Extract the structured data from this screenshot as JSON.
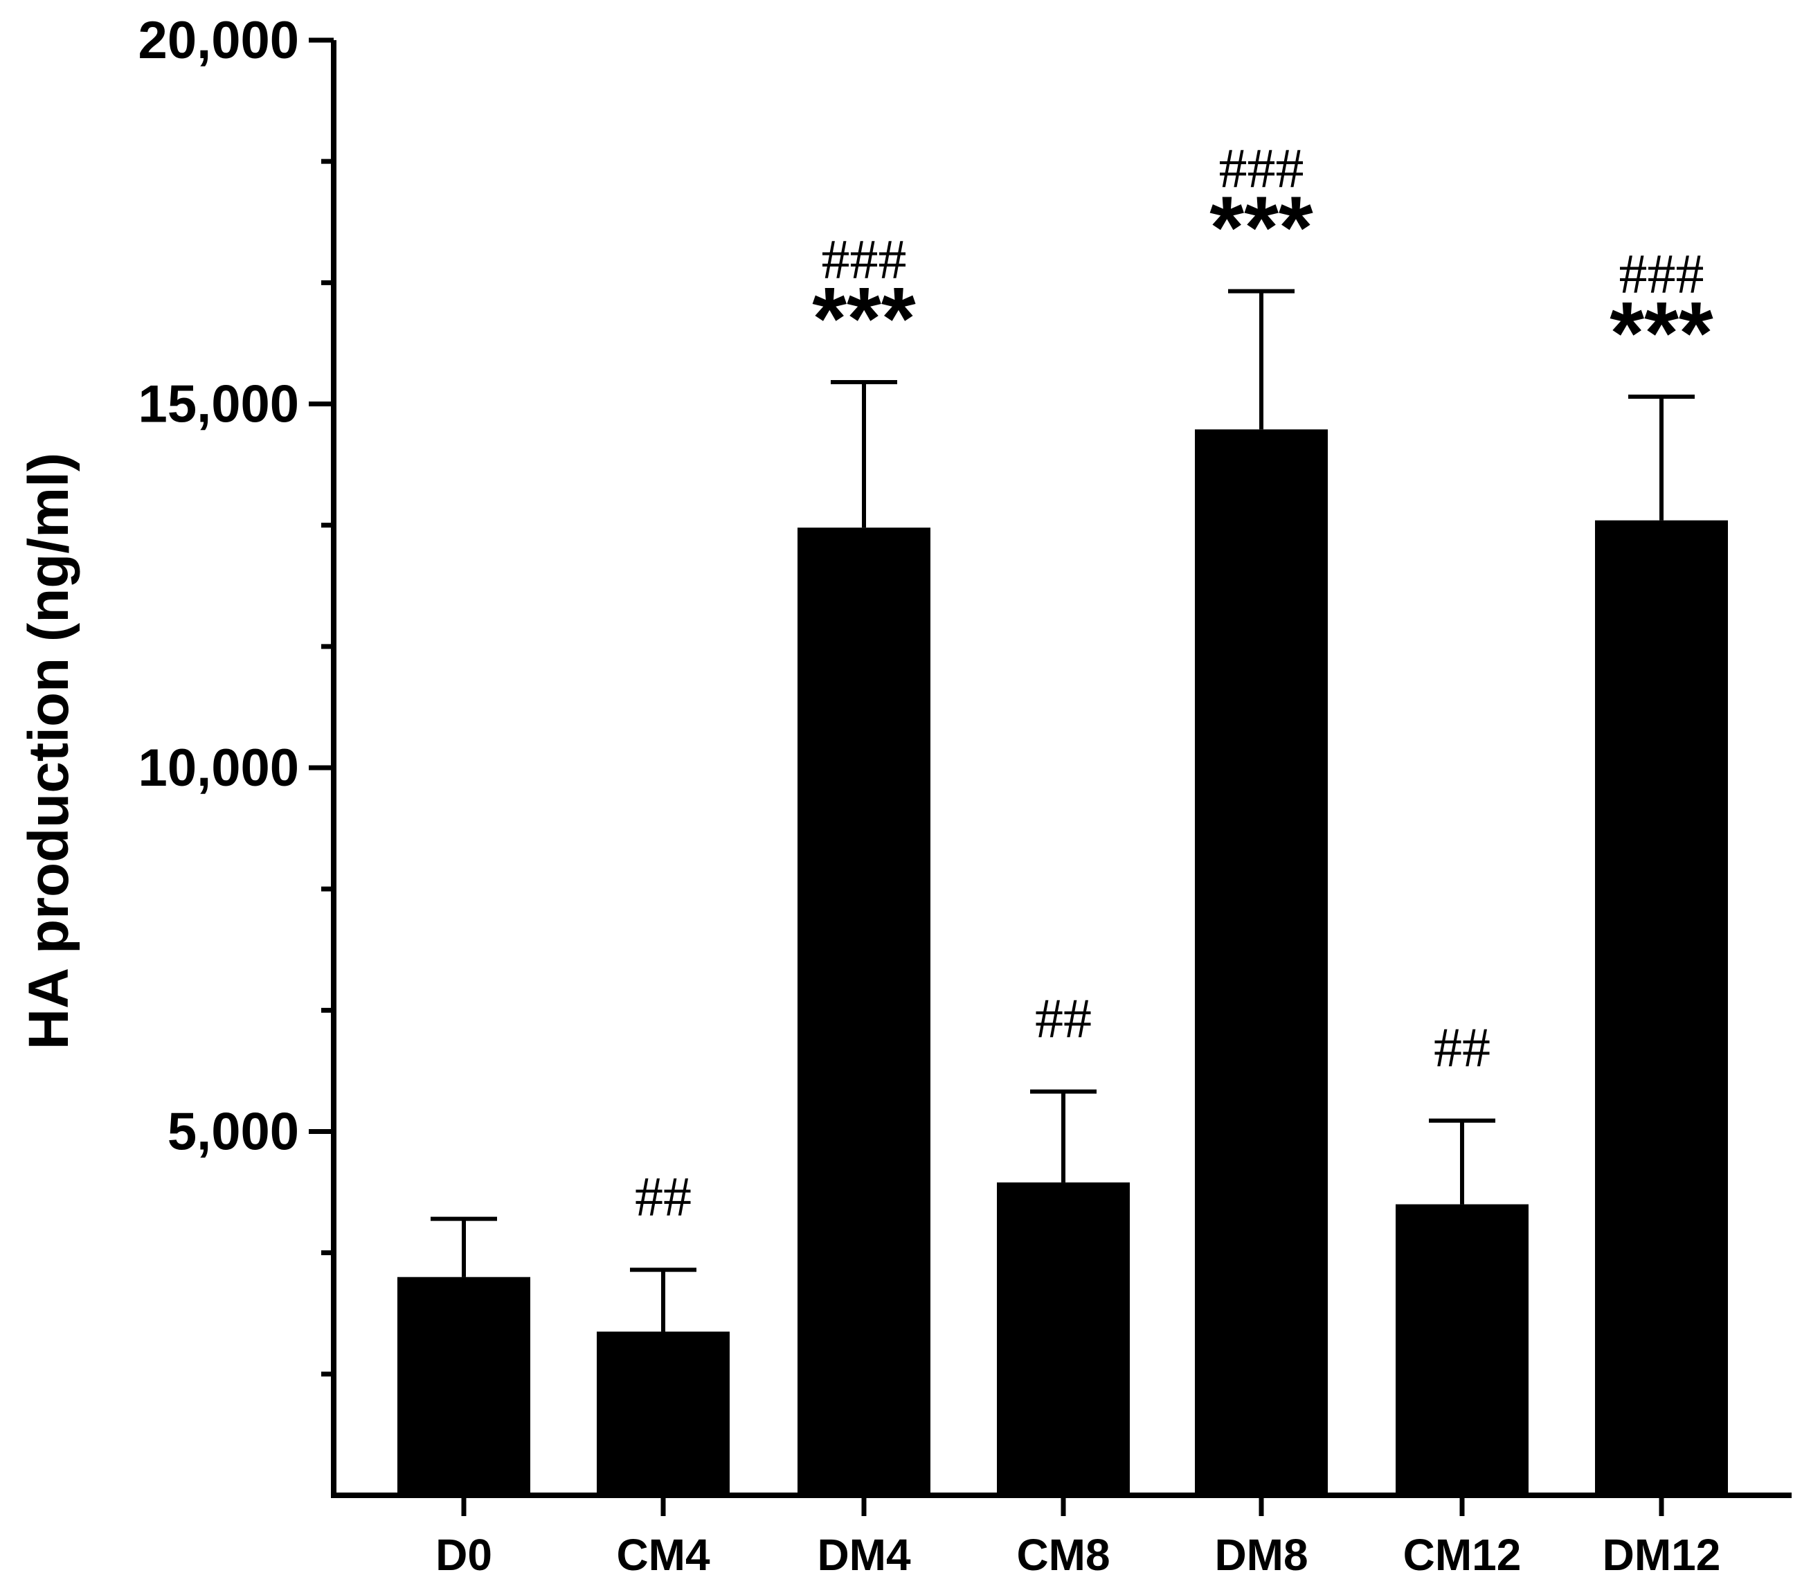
{
  "chart_data": {
    "type": "bar",
    "title": "",
    "xlabel": "",
    "ylabel": "HA production (ng/ml)",
    "ylim": [
      0,
      20000
    ],
    "yticks": [
      5000,
      10000,
      15000,
      20000
    ],
    "ytick_labels": [
      "5,000",
      "10,000",
      "15,000",
      "20,000"
    ],
    "minor_ytick_step": 1666.67,
    "grid": false,
    "legend": "none",
    "bar_color": "#000000",
    "categories": [
      "D0",
      "CM4",
      "DM4",
      "CM8",
      "DM8",
      "CM12",
      "DM12"
    ],
    "values": [
      3000,
      2250,
      13300,
      4300,
      14650,
      4000,
      13400
    ],
    "error_upper": [
      3800,
      3100,
      15300,
      5550,
      16550,
      5150,
      15100
    ],
    "annotations": [
      {
        "category": "D0",
        "hash": "",
        "stars": ""
      },
      {
        "category": "CM4",
        "hash": "##",
        "stars": ""
      },
      {
        "category": "DM4",
        "hash": "###",
        "stars": "***"
      },
      {
        "category": "CM8",
        "hash": "##",
        "stars": ""
      },
      {
        "category": "DM8",
        "hash": "###",
        "stars": "***"
      },
      {
        "category": "CM12",
        "hash": "##",
        "stars": ""
      },
      {
        "category": "DM12",
        "hash": "###",
        "stars": "***"
      }
    ]
  }
}
